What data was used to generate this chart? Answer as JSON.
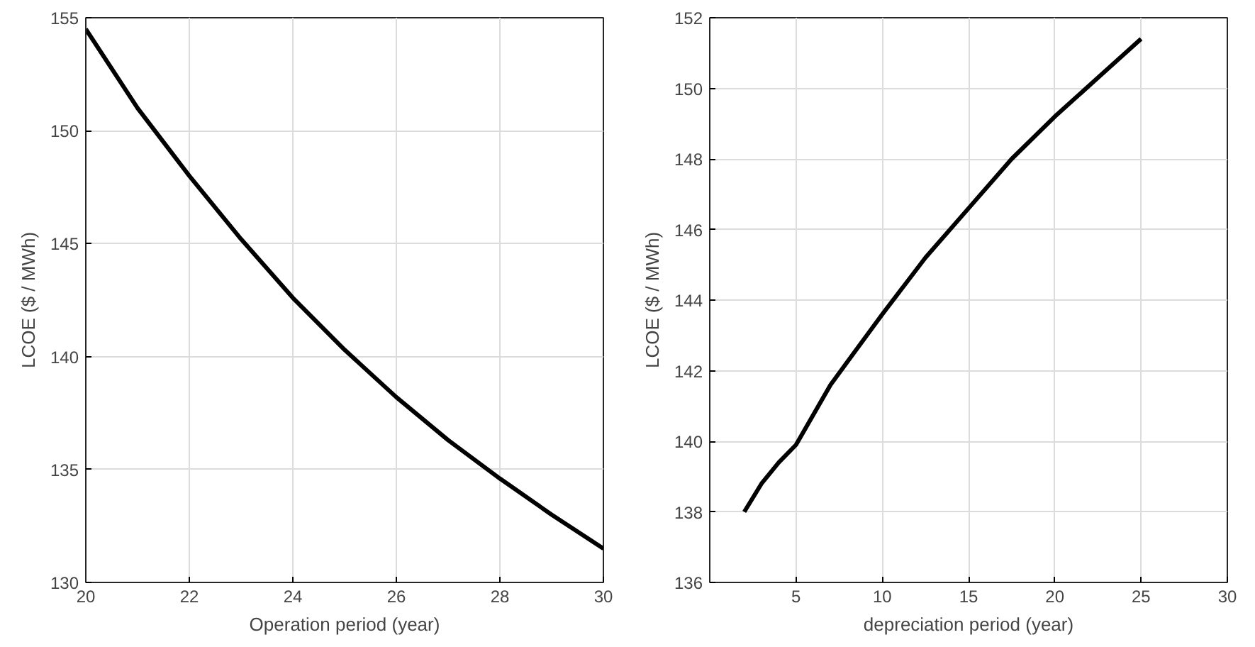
{
  "chart_data": [
    {
      "type": "line",
      "xlabel": "Operation period (year)",
      "ylabel": "LCOE ($ / MWh)",
      "x": [
        20,
        21,
        22,
        23,
        24,
        25,
        26,
        27,
        28,
        29,
        30
      ],
      "series": [
        {
          "color": "#000000",
          "values": [
            154.5,
            151.0,
            148.0,
            145.2,
            142.6,
            140.3,
            138.2,
            136.3,
            134.6,
            133.0,
            131.5
          ]
        }
      ],
      "xlim": [
        20,
        30
      ],
      "ylim": [
        130,
        155
      ],
      "xticks": [
        20,
        22,
        24,
        26,
        28,
        30
      ],
      "yticks": [
        130,
        135,
        140,
        145,
        150,
        155
      ],
      "grid": true,
      "marker": "none",
      "line_style": "solid"
    },
    {
      "type": "line",
      "xlabel": "depreciation period (year)",
      "ylabel": "LCOE ($ / MWh)",
      "x": [
        2,
        3,
        4,
        5,
        7,
        10,
        12.5,
        15,
        17.5,
        20,
        22.5,
        25
      ],
      "series": [
        {
          "color": "#000000",
          "values": [
            138.0,
            138.8,
            139.4,
            139.9,
            141.6,
            143.6,
            145.2,
            146.6,
            148.0,
            149.2,
            150.3,
            151.4
          ]
        }
      ],
      "xlim": [
        0,
        30
      ],
      "ylim": [
        136,
        152
      ],
      "xticks": [
        5,
        10,
        15,
        20,
        25,
        30
      ],
      "yticks": [
        136,
        138,
        140,
        142,
        144,
        146,
        148,
        150,
        152
      ],
      "grid": true,
      "marker": "none",
      "line_style": "solid"
    }
  ]
}
